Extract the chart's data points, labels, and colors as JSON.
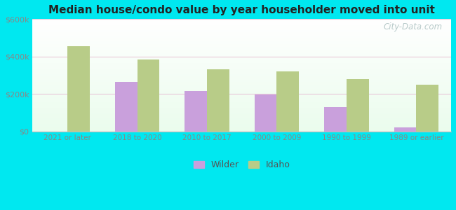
{
  "title": "Median house/condo value by year householder moved into unit",
  "categories": [
    "2021 or later",
    "2018 to 2020",
    "2010 to 2017",
    "2000 to 2009",
    "1990 to 1999",
    "1989 or earlier"
  ],
  "wilder_values": [
    0,
    265000,
    215000,
    197000,
    130000,
    20000
  ],
  "idaho_values": [
    455000,
    385000,
    330000,
    320000,
    280000,
    250000
  ],
  "wilder_color": "#c9a0dc",
  "idaho_color": "#b8cc88",
  "background_outer": "#00e8f0",
  "title_color": "#222222",
  "ylim": [
    0,
    600000
  ],
  "yticks": [
    0,
    200000,
    400000,
    600000
  ],
  "ytick_labels": [
    "$0",
    "$200k",
    "$400k",
    "$600k"
  ],
  "bar_width": 0.32,
  "watermark": "City-Data.com",
  "legend_labels": [
    "Wilder",
    "Idaho"
  ],
  "grid_color": "#e8c8d8",
  "tick_label_color": "#888888"
}
